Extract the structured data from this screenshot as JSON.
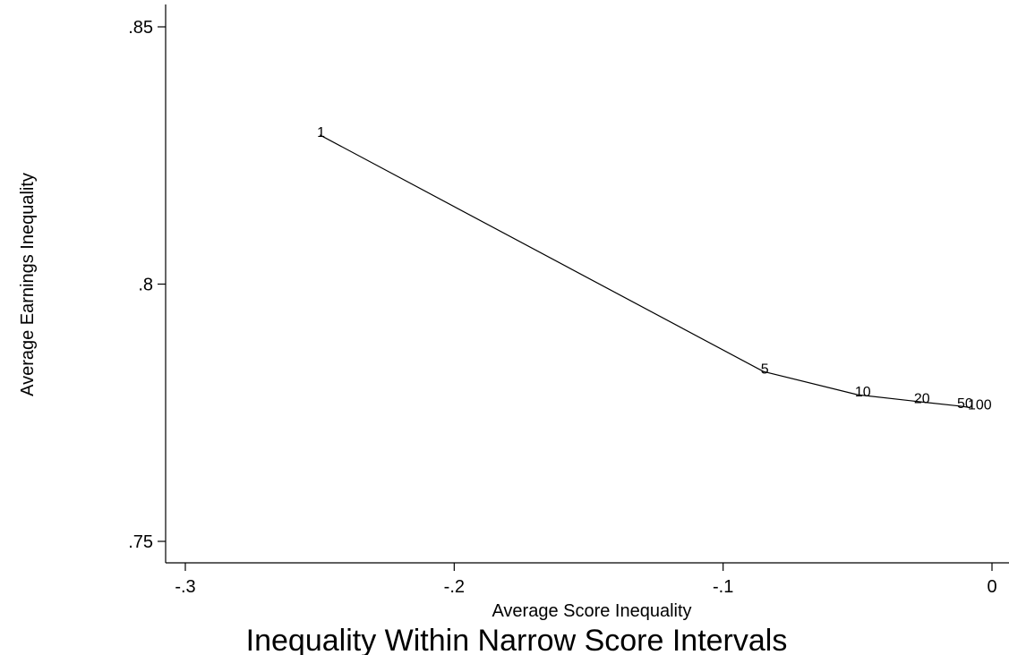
{
  "chart_data": {
    "type": "line",
    "title": "",
    "caption": "Inequality Within Narrow Score Intervals",
    "xlabel": "Average Score Inequality",
    "ylabel": "Average Earnings Inequality",
    "xlim": [
      -0.3,
      0
    ],
    "ylim": [
      0.75,
      0.85
    ],
    "x_ticks": [
      -0.3,
      -0.2,
      -0.1,
      0
    ],
    "x_tick_labels": [
      "-.3",
      "-.2",
      "-.1",
      "0"
    ],
    "y_ticks": [
      0.75,
      0.8,
      0.85
    ],
    "y_tick_labels": [
      ".75",
      ".8",
      ".85"
    ],
    "grid": false,
    "series": [
      {
        "points": [
          {
            "label": "1",
            "x": -0.25,
            "y": 0.829
          },
          {
            "label": "5",
            "x": -0.085,
            "y": 0.783
          },
          {
            "label": "10",
            "x": -0.05,
            "y": 0.7785
          },
          {
            "label": "20",
            "x": -0.028,
            "y": 0.7772
          },
          {
            "label": "50",
            "x": -0.012,
            "y": 0.7763
          },
          {
            "label": "100",
            "x": -0.008,
            "y": 0.776
          }
        ]
      }
    ],
    "colors": {
      "line": "#000000",
      "axis": "#000000",
      "background": "#ffffff"
    }
  }
}
